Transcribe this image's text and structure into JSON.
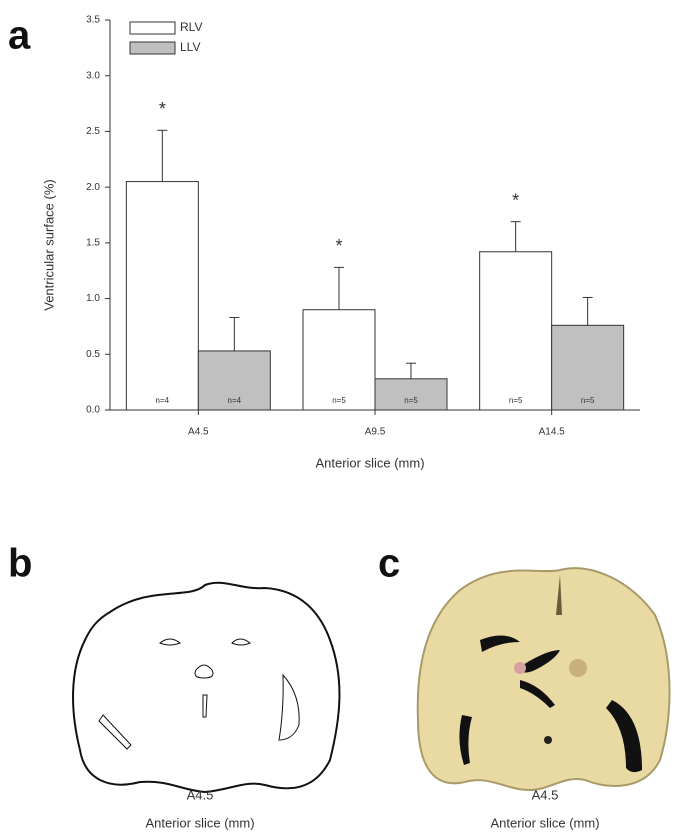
{
  "chart_data": {
    "type": "bar",
    "panel_label": "a",
    "x_label": "Anterior slice (mm)",
    "y_label": "Ventricular surface (%)",
    "categories": [
      "A4.5",
      "A9.5",
      "A14.5"
    ],
    "series": [
      {
        "name": "RLV",
        "color": "#ffffff",
        "values": [
          2.05,
          0.9,
          1.42
        ],
        "errors": [
          0.46,
          0.38,
          0.27
        ],
        "n_labels": [
          "n=4",
          "n=5",
          "n=5"
        ],
        "annotations": [
          "*",
          "*",
          "*"
        ]
      },
      {
        "name": "LLV",
        "color": "#c0c0c0",
        "values": [
          0.53,
          0.28,
          0.76
        ],
        "errors": [
          0.3,
          0.14,
          0.25
        ],
        "n_labels": [
          "n=4",
          "n=5",
          "n=5"
        ]
      }
    ],
    "ylim": [
      0,
      3.5
    ],
    "yticks": [
      {
        "value": 0,
        "label": "0.0"
      },
      {
        "value": 0.5,
        "label": "0.5"
      },
      {
        "value": 1,
        "label": "1.0"
      },
      {
        "value": 1.5,
        "label": "1.5"
      },
      {
        "value": 2,
        "label": "2.0"
      },
      {
        "value": 2.5,
        "label": "2.5"
      },
      {
        "value": 3,
        "label": "3.0"
      },
      {
        "value": 3.5,
        "label": "3.5"
      }
    ]
  },
  "panel_b": {
    "label": "b",
    "slice": "A4.5",
    "caption": "Anterior slice (mm)"
  },
  "panel_c": {
    "label": "c",
    "slice": "A4.5",
    "caption": "Anterior slice (mm)"
  }
}
